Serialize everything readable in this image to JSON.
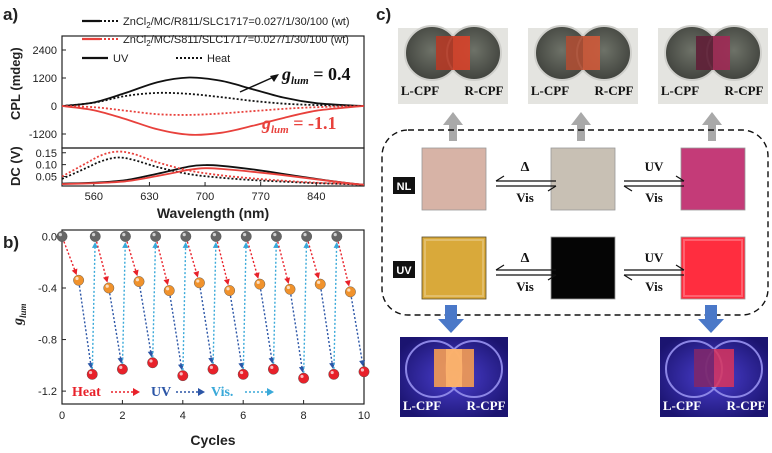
{
  "panel_labels": {
    "a": "a)",
    "b": "b)",
    "c": "c)"
  },
  "chart_data": [
    {
      "id": "a-top",
      "type": "line",
      "ylabel": "CPL (mdeg)",
      "xlim": [
        520,
        900
      ],
      "ylim": [
        -1800,
        3000
      ],
      "yticks": [
        -1200,
        0,
        1200,
        2400
      ],
      "legend": [
        {
          "name": "ZnCl2/MC/R811/SLC1717=0.027/1/30/100 (wt)",
          "name_main": "ZnCl",
          "name_sub": "2",
          "name_rest": "/MC/R811/SLC1717=0.027/1/30/100 (wt)",
          "color": "#111111"
        },
        {
          "name": "ZnCl2/MC/S811/SLC1717=0.027/1/30/100 (wt)",
          "name_main": "ZnCl",
          "name_sub": "2",
          "name_rest": "/MC/S811/SLC1717=0.027/1/30/100 (wt)",
          "color": "#e8413c"
        },
        {
          "name": "UV",
          "style": "solid"
        },
        {
          "name": "Heat",
          "style": "dotted"
        }
      ],
      "series": [
        {
          "name": "R811 UV",
          "color": "#111111",
          "dash": "solid",
          "x": [
            520,
            560,
            600,
            640,
            680,
            720,
            760,
            800,
            840,
            880,
            900
          ],
          "y": [
            0,
            150,
            560,
            1020,
            1220,
            1080,
            720,
            350,
            120,
            30,
            0
          ]
        },
        {
          "name": "R811 Heat",
          "color": "#111111",
          "dash": "dotted",
          "x": [
            520,
            560,
            600,
            640,
            680,
            720,
            760,
            800,
            840,
            880,
            900
          ],
          "y": [
            0,
            140,
            430,
            560,
            520,
            380,
            220,
            100,
            40,
            10,
            0
          ]
        },
        {
          "name": "S811 UV",
          "color": "#e8413c",
          "dash": "solid",
          "x": [
            520,
            560,
            600,
            640,
            680,
            720,
            760,
            800,
            840,
            880,
            900
          ],
          "y": [
            0,
            -180,
            -560,
            -1000,
            -1230,
            -1150,
            -850,
            -500,
            -200,
            -60,
            0
          ]
        },
        {
          "name": "S811 Heat",
          "color": "#e8413c",
          "dash": "dotted",
          "x": [
            520,
            560,
            600,
            640,
            680,
            720,
            760,
            800,
            840,
            880,
            900
          ],
          "y": [
            0,
            -50,
            -200,
            -350,
            -380,
            -320,
            -220,
            -120,
            -50,
            -15,
            0
          ]
        }
      ],
      "annotations": [
        {
          "text_main": "g",
          "text_sub": "lum",
          "text_value": " = 0.4",
          "color": "#111111"
        },
        {
          "text_main": "g",
          "text_sub": "lum",
          "text_value": " = -1.1",
          "color": "#e8413c"
        }
      ]
    },
    {
      "id": "a-bottom",
      "type": "line",
      "xlabel": "Wavelength (nm)",
      "ylabel": "DC (V)",
      "xlim": [
        520,
        900
      ],
      "ylim": [
        0.01,
        0.17
      ],
      "xticks": [
        560,
        630,
        700,
        770,
        840
      ],
      "yticks": [
        0.05,
        0.1,
        0.15
      ],
      "ytick_labels": [
        "0.05",
        "0.10",
        "0.15"
      ],
      "series": [
        {
          "name": "R811 UV",
          "color": "#111111",
          "dash": "solid",
          "x": [
            520,
            560,
            600,
            640,
            680,
            700,
            720,
            760,
            800,
            840,
            880,
            900
          ],
          "y": [
            0.02,
            0.024,
            0.035,
            0.062,
            0.092,
            0.098,
            0.095,
            0.08,
            0.06,
            0.04,
            0.022,
            0.015
          ]
        },
        {
          "name": "R811 Heat",
          "color": "#111111",
          "dash": "dotted",
          "x": [
            520,
            550,
            570,
            590,
            610,
            640,
            680,
            720,
            760,
            800,
            840,
            880,
            900
          ],
          "y": [
            0.04,
            0.085,
            0.115,
            0.13,
            0.12,
            0.09,
            0.06,
            0.045,
            0.035,
            0.028,
            0.022,
            0.018,
            0.015
          ]
        },
        {
          "name": "S811 UV",
          "color": "#e8413c",
          "dash": "solid",
          "x": [
            520,
            560,
            600,
            640,
            680,
            700,
            720,
            760,
            800,
            840,
            880,
            900
          ],
          "y": [
            0.018,
            0.022,
            0.03,
            0.052,
            0.078,
            0.085,
            0.082,
            0.07,
            0.055,
            0.038,
            0.022,
            0.015
          ]
        },
        {
          "name": "S811 Heat",
          "color": "#e8413c",
          "dash": "dotted",
          "x": [
            520,
            550,
            570,
            590,
            610,
            640,
            680,
            720,
            760,
            800,
            840,
            880,
            900
          ],
          "y": [
            0.05,
            0.105,
            0.14,
            0.155,
            0.145,
            0.11,
            0.075,
            0.055,
            0.042,
            0.032,
            0.024,
            0.019,
            0.016
          ]
        }
      ]
    },
    {
      "id": "b",
      "type": "scatter",
      "xlabel": "Cycles",
      "ylabel_main": "g",
      "ylabel_sub": "lum",
      "xlim": [
        0,
        10
      ],
      "ylim": [
        -1.3,
        0.05
      ],
      "xticks": [
        0,
        2,
        4,
        6,
        8,
        10
      ],
      "yticks": [
        0.0,
        -0.4,
        -0.8,
        -1.2
      ],
      "ytick_labels": [
        "0.0",
        "-0.4",
        "-0.8",
        "-1.2"
      ],
      "points": [
        {
          "x": 0,
          "y": 0.0,
          "state": "Vis"
        },
        {
          "x": 0.55,
          "y": -0.34,
          "state": "UV"
        },
        {
          "x": 1,
          "y": -1.07,
          "state": "Heat"
        },
        {
          "x": 1.1,
          "y": 0.0,
          "state": "Vis"
        },
        {
          "x": 1.55,
          "y": -0.4,
          "state": "UV"
        },
        {
          "x": 2,
          "y": -1.03,
          "state": "Heat"
        },
        {
          "x": 2.1,
          "y": 0.0,
          "state": "Vis"
        },
        {
          "x": 2.55,
          "y": -0.35,
          "state": "UV"
        },
        {
          "x": 3,
          "y": -0.98,
          "state": "Heat"
        },
        {
          "x": 3.1,
          "y": 0.0,
          "state": "Vis"
        },
        {
          "x": 3.55,
          "y": -0.42,
          "state": "UV"
        },
        {
          "x": 4,
          "y": -1.08,
          "state": "Heat"
        },
        {
          "x": 4.1,
          "y": 0.0,
          "state": "Vis"
        },
        {
          "x": 4.55,
          "y": -0.36,
          "state": "UV"
        },
        {
          "x": 5,
          "y": -1.03,
          "state": "Heat"
        },
        {
          "x": 5.1,
          "y": 0.0,
          "state": "Vis"
        },
        {
          "x": 5.55,
          "y": -0.42,
          "state": "UV"
        },
        {
          "x": 6,
          "y": -1.07,
          "state": "Heat"
        },
        {
          "x": 6.1,
          "y": 0.0,
          "state": "Vis"
        },
        {
          "x": 6.55,
          "y": -0.37,
          "state": "UV"
        },
        {
          "x": 7,
          "y": -1.03,
          "state": "Heat"
        },
        {
          "x": 7.1,
          "y": 0.0,
          "state": "Vis"
        },
        {
          "x": 7.55,
          "y": -0.41,
          "state": "UV"
        },
        {
          "x": 8,
          "y": -1.1,
          "state": "Heat"
        },
        {
          "x": 8.1,
          "y": 0.0,
          "state": "Vis"
        },
        {
          "x": 8.55,
          "y": -0.37,
          "state": "UV"
        },
        {
          "x": 9,
          "y": -1.07,
          "state": "Heat"
        },
        {
          "x": 9.1,
          "y": 0.0,
          "state": "Vis"
        },
        {
          "x": 9.55,
          "y": -0.43,
          "state": "UV"
        },
        {
          "x": 10,
          "y": -1.05,
          "state": "Heat"
        }
      ],
      "legend": [
        {
          "name": "Heat",
          "color": "#e8212a"
        },
        {
          "name": "UV",
          "color": "#2b55a6"
        },
        {
          "name": "Vis.",
          "color": "#3aa9d9"
        }
      ],
      "colors": {
        "Vis": "#666666",
        "UV": "#f0922c",
        "Heat": "#e8212a",
        "arrow_heat": "#e8212a",
        "arrow_uv": "#2b55a6",
        "arrow_vis": "#3aa9d9"
      }
    }
  ],
  "diagram_c": {
    "row_labels": {
      "nl": "NL",
      "uv": "UV"
    },
    "arrow_labels": {
      "delta": "Δ",
      "vis": "Vis",
      "uv": "UV"
    },
    "film_labels": {
      "left": "L-CPF",
      "right": "R-CPF"
    },
    "photos_top": [
      {
        "left_color": "#5a5e56",
        "right_color": "#5a5e56",
        "center_color": "#d8432a"
      },
      {
        "left_color": "#5b5f58",
        "right_color": "#5b5f58",
        "center_color": "#cf5a3a"
      },
      {
        "left_color": "#4a4c48",
        "right_color": "#4a4c48",
        "center_color": "#a02a55"
      }
    ],
    "squares": [
      {
        "color": "#d7b3a6"
      },
      {
        "color": "#c8c0b4"
      },
      {
        "color": "#c43b78"
      },
      {
        "color": "#d9a93a"
      },
      {
        "color": "#050505"
      },
      {
        "color": "#ff2d3f"
      }
    ],
    "colors": {
      "gray_arrow": "#a9a9a9",
      "blue_arrow": "#4a78c8",
      "uv_photo_bg": "#2a1f8c"
    }
  }
}
